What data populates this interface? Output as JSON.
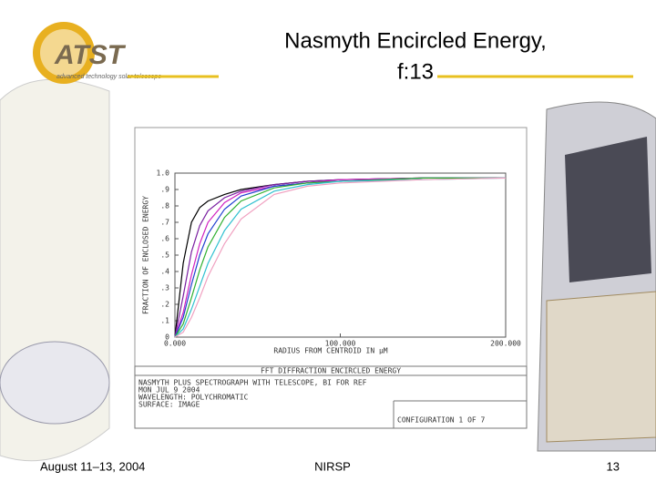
{
  "slide": {
    "logo_text": "ATST",
    "logo_tagline": "advanced technology solar telescope",
    "title_lines": [
      "Nasmyth Encircled Energy,",
      "f:13"
    ],
    "footer_left": "August 11–13, 2004",
    "footer_center": "NIRSP",
    "page_number": "13"
  },
  "chart_data": {
    "type": "line",
    "title": "FFT DIFFRACTION ENCIRCLED ENERGY",
    "x_label": "RADIUS FROM CENTROID IN µM",
    "y_label": "FRACTION OF ENCLOSED ENERGY",
    "x": [
      0,
      5,
      10,
      15,
      20,
      30,
      40,
      60,
      80,
      100,
      150,
      200
    ],
    "series": [
      {
        "color": "#000000",
        "values": [
          0,
          0.45,
          0.7,
          0.79,
          0.83,
          0.87,
          0.9,
          0.93,
          0.95,
          0.96,
          0.97,
          0.97
        ]
      },
      {
        "color": "#7a1fa0",
        "values": [
          0,
          0.25,
          0.52,
          0.68,
          0.77,
          0.85,
          0.89,
          0.93,
          0.95,
          0.96,
          0.97,
          0.97
        ]
      },
      {
        "color": "#d020c0",
        "values": [
          0,
          0.15,
          0.38,
          0.57,
          0.7,
          0.82,
          0.88,
          0.92,
          0.94,
          0.96,
          0.97,
          0.97
        ]
      },
      {
        "color": "#2040d0",
        "values": [
          0,
          0.12,
          0.32,
          0.5,
          0.63,
          0.78,
          0.86,
          0.92,
          0.94,
          0.95,
          0.97,
          0.97
        ]
      },
      {
        "color": "#30b030",
        "values": [
          0,
          0.08,
          0.24,
          0.41,
          0.55,
          0.73,
          0.83,
          0.91,
          0.94,
          0.95,
          0.97,
          0.97
        ]
      },
      {
        "color": "#30c0d0",
        "values": [
          0,
          0.05,
          0.17,
          0.31,
          0.45,
          0.65,
          0.78,
          0.89,
          0.93,
          0.95,
          0.96,
          0.97
        ]
      },
      {
        "color": "#f0a0c0",
        "values": [
          0,
          0.03,
          0.12,
          0.24,
          0.37,
          0.57,
          0.72,
          0.87,
          0.92,
          0.94,
          0.96,
          0.97
        ]
      }
    ],
    "xlim": [
      0,
      200
    ],
    "xticks": [
      {
        "value": 0,
        "label": "0.000"
      },
      {
        "value": 100,
        "label": "100.000"
      },
      {
        "value": 200,
        "label": "200.000"
      }
    ],
    "ylim": [
      0,
      1
    ],
    "yticks": [
      0,
      {
        "value": 0.1,
        "label": ".1"
      },
      {
        "value": 0.2,
        "label": ".2"
      },
      {
        "value": 0.3,
        "label": ".3"
      },
      {
        "value": 0.4,
        "label": ".4"
      },
      {
        "value": 0.5,
        "label": ".5"
      },
      {
        "value": 0.6,
        "label": ".6"
      },
      {
        "value": 0.7,
        "label": ".7"
      },
      {
        "value": 0.8,
        "label": ".8"
      },
      {
        "value": 0.9,
        "label": ".9"
      },
      {
        "value": 1,
        "label": "1.0"
      }
    ],
    "notes": [
      "NASMYTH PLUS SPECTROGRAPH WITH TELESCOPE, BI FOR REF",
      "MON JUL 9 2004",
      "WAVELENGTH: POLYCHROMATIC",
      "SURFACE: IMAGE"
    ],
    "configuration": "CONFIGURATION 1 OF 7"
  }
}
